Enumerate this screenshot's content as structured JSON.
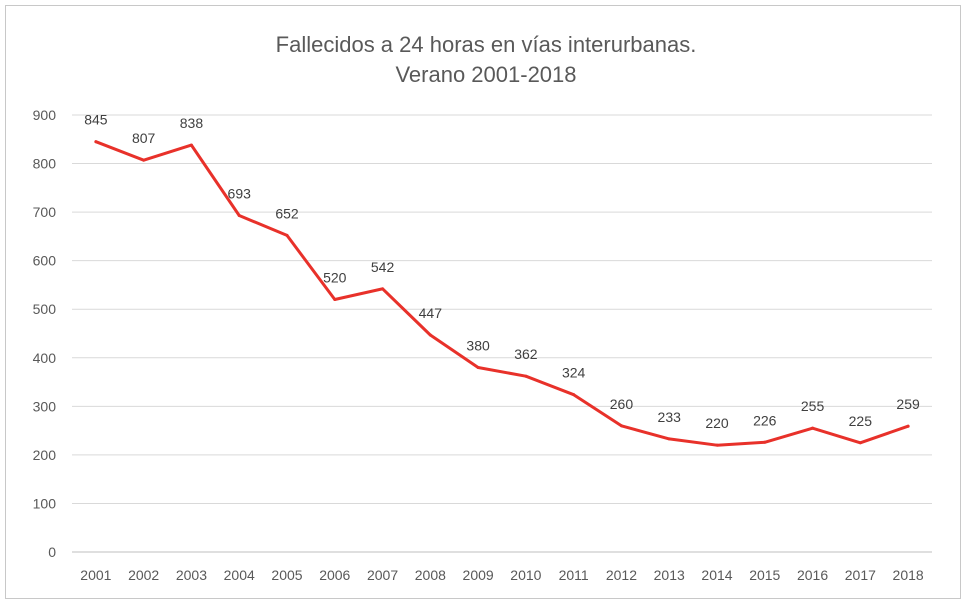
{
  "chart_data": {
    "type": "line",
    "title": "Fallecidos a 24 horas en vías interurbanas.",
    "subtitle": "Verano 2001-2018",
    "xlabel": "",
    "ylabel": "",
    "categories": [
      "2001",
      "2002",
      "2003",
      "2004",
      "2005",
      "2006",
      "2007",
      "2008",
      "2009",
      "2010",
      "2011",
      "2012",
      "2013",
      "2014",
      "2015",
      "2016",
      "2017",
      "2018"
    ],
    "series": [
      {
        "values": [
          845,
          807,
          838,
          693,
          652,
          520,
          542,
          447,
          380,
          362,
          324,
          260,
          233,
          220,
          226,
          255,
          225,
          259
        ]
      }
    ],
    "ylim": [
      0,
      900
    ],
    "yticks": [
      0,
      100,
      200,
      300,
      400,
      500,
      600,
      700,
      800,
      900
    ],
    "grid": true,
    "legend": "none",
    "line_color": "#e8312a"
  }
}
